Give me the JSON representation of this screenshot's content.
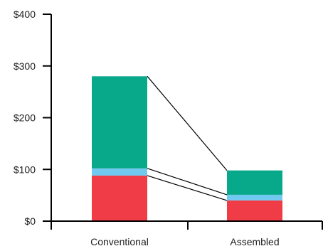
{
  "chart_data": {
    "type": "bar",
    "stacked": true,
    "categories": [
      "Conventional",
      "Assembled"
    ],
    "series": [
      {
        "values": [
          88,
          40
        ],
        "color": "#f03c46"
      },
      {
        "values": [
          14,
          11
        ],
        "color": "#72c9ef"
      },
      {
        "values": [
          178,
          47
        ],
        "color": "#08a88a"
      }
    ],
    "connector_lines": true,
    "yticks": [
      0,
      100,
      200,
      300,
      400
    ],
    "ytick_labels": [
      "$0",
      "$100",
      "$200",
      "$300",
      "$400"
    ],
    "ylim": [
      0,
      400
    ],
    "title": "",
    "xlabel": "",
    "ylabel": "",
    "grid": false,
    "legend": "none"
  }
}
